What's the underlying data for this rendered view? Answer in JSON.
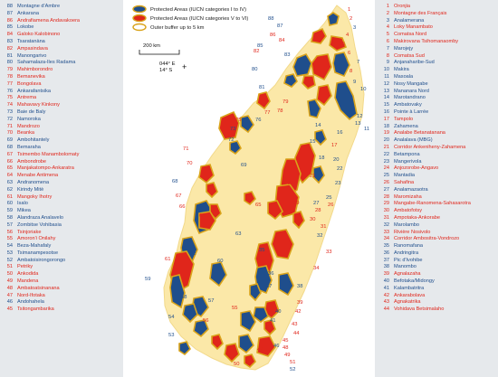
{
  "legend": {
    "items": [
      {
        "label": "Protected Areas (IUCN categories I to IV)",
        "color": "#1f4e8c"
      },
      {
        "label": "Protected Areas (IUCN categories V to VI)",
        "color": "#e0261b"
      },
      {
        "label": "Outer buffer up to 5 km",
        "color": "#d9a31a"
      }
    ]
  },
  "scale_label": "200 km",
  "coordinates": {
    "lon": "044° E",
    "lat": "14° S"
  },
  "colors": {
    "blue": "#1f4e8c",
    "red": "#e0261b",
    "buffer": "#d9a31a",
    "land": "#fbe8a8"
  },
  "left_list": [
    {
      "n": "88",
      "name": "Montagne d'Ambre",
      "cat": "blue"
    },
    {
      "n": "87",
      "name": "Ankarana",
      "cat": "blue"
    },
    {
      "n": "86",
      "name": "Andrafiamena Andavakoera",
      "cat": "red"
    },
    {
      "n": "85",
      "name": "Lokobe",
      "cat": "blue"
    },
    {
      "n": "84",
      "name": "Galoko Kalobinono",
      "cat": "red"
    },
    {
      "n": "83",
      "name": "Tsaratanàna",
      "cat": "blue"
    },
    {
      "n": "82",
      "name": "Ampasindava",
      "cat": "red"
    },
    {
      "n": "81",
      "name": "Manongarivo",
      "cat": "blue"
    },
    {
      "n": "80",
      "name": "Sahamalaza-Iles Radama",
      "cat": "blue"
    },
    {
      "n": "79",
      "name": "Mahimborondro",
      "cat": "red"
    },
    {
      "n": "78",
      "name": "Bemanevika",
      "cat": "red"
    },
    {
      "n": "77",
      "name": "Bongolava",
      "cat": "red"
    },
    {
      "n": "76",
      "name": "Ankarafantsika",
      "cat": "blue"
    },
    {
      "n": "75",
      "name": "Antrema",
      "cat": "red"
    },
    {
      "n": "74",
      "name": "Mahavavy Kinkony",
      "cat": "red"
    },
    {
      "n": "73",
      "name": "Baie de Baly",
      "cat": "blue"
    },
    {
      "n": "72",
      "name": "Namoroka",
      "cat": "blue"
    },
    {
      "n": "71",
      "name": "Mandrozo",
      "cat": "red"
    },
    {
      "n": "70",
      "name": "Beanka",
      "cat": "red"
    },
    {
      "n": "69",
      "name": "Ambohitantely",
      "cat": "blue"
    },
    {
      "n": "68",
      "name": "Bemaraha",
      "cat": "blue"
    },
    {
      "n": "67",
      "name": "Tsimembo Manambolomaty",
      "cat": "red"
    },
    {
      "n": "66",
      "name": "Ambondrobe",
      "cat": "red"
    },
    {
      "n": "65",
      "name": "Manjakatompo-Ankaratra",
      "cat": "red"
    },
    {
      "n": "64",
      "name": "Menabe Antimena",
      "cat": "red"
    },
    {
      "n": "63",
      "name": "Andranomena",
      "cat": "blue"
    },
    {
      "n": "62",
      "name": "Kirindy Mitè",
      "cat": "blue"
    },
    {
      "n": "61",
      "name": "Mangoky Ihotry",
      "cat": "red"
    },
    {
      "n": "60",
      "name": "Isalo",
      "cat": "blue"
    },
    {
      "n": "59",
      "name": "Mikea",
      "cat": "blue"
    },
    {
      "n": "58",
      "name": "Alandraza Analavelo",
      "cat": "blue"
    },
    {
      "n": "57",
      "name": "Zombitse Vohibasia",
      "cat": "blue"
    },
    {
      "n": "56",
      "name": "Tsinjoriake",
      "cat": "red"
    },
    {
      "n": "55",
      "name": "Amoron'i Onilahy",
      "cat": "red"
    },
    {
      "n": "54",
      "name": "Beza-Mahafaly",
      "cat": "blue"
    },
    {
      "n": "53",
      "name": "Tsimanampesotse",
      "cat": "blue"
    },
    {
      "n": "52",
      "name": "Ambatoisirongorongo",
      "cat": "blue"
    },
    {
      "n": "51",
      "name": "Petriky",
      "cat": "red"
    },
    {
      "n": "50",
      "name": "Ankodida",
      "cat": "red"
    },
    {
      "n": "49",
      "name": "Mandena",
      "cat": "red"
    },
    {
      "n": "48",
      "name": "Ambatoatsinanana",
      "cat": "red"
    },
    {
      "n": "47",
      "name": "Nord-Ifotaka",
      "cat": "red"
    },
    {
      "n": "46",
      "name": "Andohahela",
      "cat": "blue"
    },
    {
      "n": "45",
      "name": "Tsitongambarika",
      "cat": "red"
    }
  ],
  "right_list": [
    {
      "n": "1",
      "name": "Oronjia",
      "cat": "red"
    },
    {
      "n": "2",
      "name": "Montagne des Français",
      "cat": "red"
    },
    {
      "n": "3",
      "name": "Analamerana",
      "cat": "blue"
    },
    {
      "n": "4",
      "name": "Loky Manambato",
      "cat": "red"
    },
    {
      "n": "5",
      "name": "Comatsa Nord",
      "cat": "red"
    },
    {
      "n": "6",
      "name": "Makirovana Tsihomanaomby",
      "cat": "red"
    },
    {
      "n": "7",
      "name": "Marojejy",
      "cat": "blue"
    },
    {
      "n": "8",
      "name": "Comatsa Sud",
      "cat": "red"
    },
    {
      "n": "9",
      "name": "Anjanaharibe-Sud",
      "cat": "blue"
    },
    {
      "n": "10",
      "name": "Makira",
      "cat": "blue"
    },
    {
      "n": "11",
      "name": "Masoala",
      "cat": "blue"
    },
    {
      "n": "12",
      "name": "Nosy Mangabe",
      "cat": "blue"
    },
    {
      "n": "13",
      "name": "Mananara Nord",
      "cat": "blue"
    },
    {
      "n": "14",
      "name": "Marotandrano",
      "cat": "blue"
    },
    {
      "n": "15",
      "name": "Ambatovaky",
      "cat": "blue"
    },
    {
      "n": "16",
      "name": "Pointe à Larrée",
      "cat": "blue"
    },
    {
      "n": "17",
      "name": "Tampolo",
      "cat": "red"
    },
    {
      "n": "18",
      "name": "Zahamena",
      "cat": "blue"
    },
    {
      "n": "19",
      "name": "Analabe Betanatanana",
      "cat": "red"
    },
    {
      "n": "20",
      "name": "Analalava (MBG)",
      "cat": "blue"
    },
    {
      "n": "21",
      "name": "Corridor Ankeniheny-Zahamena",
      "cat": "red"
    },
    {
      "n": "22",
      "name": "Betampona",
      "cat": "blue"
    },
    {
      "n": "23",
      "name": "Mangerivola",
      "cat": "blue"
    },
    {
      "n": "24",
      "name": "Anjozorobe-Angavo",
      "cat": "red"
    },
    {
      "n": "25",
      "name": "Mantadia",
      "cat": "blue"
    },
    {
      "n": "26",
      "name": "Sahafina",
      "cat": "red"
    },
    {
      "n": "27",
      "name": "Analamazaotra",
      "cat": "blue"
    },
    {
      "n": "28",
      "name": "Maromizaha",
      "cat": "red"
    },
    {
      "n": "29",
      "name": "Mangabe-Ranomena-Sahasarotra",
      "cat": "red"
    },
    {
      "n": "30",
      "name": "Ambatofotsy",
      "cat": "red"
    },
    {
      "n": "31",
      "name": "Ampotaka-Ankorabe",
      "cat": "red"
    },
    {
      "n": "32",
      "name": "Marolambo",
      "cat": "blue"
    },
    {
      "n": "33",
      "name": "Rivière Nosivolo",
      "cat": "red"
    },
    {
      "n": "34",
      "name": "Corridor Ambositra-Vondrozo",
      "cat": "red"
    },
    {
      "n": "35",
      "name": "Ranomafana",
      "cat": "blue"
    },
    {
      "n": "36",
      "name": "Andringitra",
      "cat": "blue"
    },
    {
      "n": "37",
      "name": "Pic d'Ivohibe",
      "cat": "blue"
    },
    {
      "n": "38",
      "name": "Manombo",
      "cat": "blue"
    },
    {
      "n": "39",
      "name": "Agnalazaha",
      "cat": "red"
    },
    {
      "n": "40",
      "name": "Befotaka/Midongy",
      "cat": "blue"
    },
    {
      "n": "41",
      "name": "Kalambatritra",
      "cat": "blue"
    },
    {
      "n": "42",
      "name": "Ankarabolava",
      "cat": "red"
    },
    {
      "n": "43",
      "name": "Agnakatrika",
      "cat": "red"
    },
    {
      "n": "44",
      "name": "Vohidava Betsimalaho",
      "cat": "red"
    }
  ],
  "map_labels": [
    {
      "n": "1",
      "cat": "red"
    },
    {
      "n": "2",
      "cat": "red"
    },
    {
      "n": "3",
      "cat": "blue"
    },
    {
      "n": "4",
      "cat": "red"
    },
    {
      "n": "5",
      "cat": "red"
    },
    {
      "n": "6",
      "cat": "red"
    },
    {
      "n": "7",
      "cat": "blue"
    },
    {
      "n": "8",
      "cat": "red"
    },
    {
      "n": "9",
      "cat": "blue"
    },
    {
      "n": "10",
      "cat": "blue"
    },
    {
      "n": "11",
      "cat": "blue"
    },
    {
      "n": "12",
      "cat": "blue"
    },
    {
      "n": "13",
      "cat": "blue"
    },
    {
      "n": "14",
      "cat": "blue"
    },
    {
      "n": "15",
      "cat": "blue"
    },
    {
      "n": "16",
      "cat": "blue"
    },
    {
      "n": "17",
      "cat": "red"
    },
    {
      "n": "18",
      "cat": "blue"
    },
    {
      "n": "19",
      "cat": "red"
    },
    {
      "n": "20",
      "cat": "blue"
    },
    {
      "n": "21",
      "cat": "red"
    },
    {
      "n": "22",
      "cat": "blue"
    },
    {
      "n": "23",
      "cat": "blue"
    },
    {
      "n": "24",
      "cat": "red"
    },
    {
      "n": "25",
      "cat": "blue"
    },
    {
      "n": "26",
      "cat": "red"
    },
    {
      "n": "27",
      "cat": "blue"
    },
    {
      "n": "28",
      "cat": "red"
    },
    {
      "n": "29",
      "cat": "red"
    },
    {
      "n": "30",
      "cat": "red"
    },
    {
      "n": "31",
      "cat": "red"
    },
    {
      "n": "32",
      "cat": "blue"
    },
    {
      "n": "33",
      "cat": "red"
    },
    {
      "n": "34",
      "cat": "red"
    },
    {
      "n": "35",
      "cat": "blue"
    },
    {
      "n": "36",
      "cat": "blue"
    },
    {
      "n": "37",
      "cat": "blue"
    },
    {
      "n": "38",
      "cat": "blue"
    },
    {
      "n": "39",
      "cat": "red"
    },
    {
      "n": "40",
      "cat": "blue"
    },
    {
      "n": "41",
      "cat": "blue"
    },
    {
      "n": "42",
      "cat": "red"
    },
    {
      "n": "43",
      "cat": "red"
    },
    {
      "n": "44",
      "cat": "red"
    },
    {
      "n": "45",
      "cat": "red"
    },
    {
      "n": "46",
      "cat": "blue"
    },
    {
      "n": "47",
      "cat": "red"
    },
    {
      "n": "48",
      "cat": "red"
    },
    {
      "n": "49",
      "cat": "red"
    },
    {
      "n": "50",
      "cat": "red"
    },
    {
      "n": "51",
      "cat": "red"
    },
    {
      "n": "52",
      "cat": "blue"
    },
    {
      "n": "53",
      "cat": "blue"
    },
    {
      "n": "54",
      "cat": "blue"
    },
    {
      "n": "55",
      "cat": "red"
    },
    {
      "n": "56",
      "cat": "red"
    },
    {
      "n": "57",
      "cat": "blue"
    },
    {
      "n": "58",
      "cat": "blue"
    },
    {
      "n": "59",
      "cat": "blue"
    },
    {
      "n": "60",
      "cat": "blue"
    },
    {
      "n": "61",
      "cat": "red"
    },
    {
      "n": "62",
      "cat": "blue"
    },
    {
      "n": "63",
      "cat": "blue"
    },
    {
      "n": "64",
      "cat": "red"
    },
    {
      "n": "65",
      "cat": "red"
    },
    {
      "n": "66",
      "cat": "red"
    },
    {
      "n": "67",
      "cat": "red"
    },
    {
      "n": "68",
      "cat": "blue"
    },
    {
      "n": "69",
      "cat": "blue"
    },
    {
      "n": "70",
      "cat": "red"
    },
    {
      "n": "71",
      "cat": "red"
    },
    {
      "n": "72",
      "cat": "blue"
    },
    {
      "n": "73",
      "cat": "blue"
    },
    {
      "n": "74",
      "cat": "red"
    },
    {
      "n": "75",
      "cat": "red"
    },
    {
      "n": "76",
      "cat": "blue"
    },
    {
      "n": "77",
      "cat": "red"
    },
    {
      "n": "78",
      "cat": "red"
    },
    {
      "n": "79",
      "cat": "red"
    },
    {
      "n": "80",
      "cat": "blue"
    },
    {
      "n": "81",
      "cat": "blue"
    },
    {
      "n": "82",
      "cat": "red"
    },
    {
      "n": "83",
      "cat": "blue"
    },
    {
      "n": "84",
      "cat": "red"
    },
    {
      "n": "85",
      "cat": "blue"
    },
    {
      "n": "86",
      "cat": "red"
    },
    {
      "n": "87",
      "cat": "blue"
    },
    {
      "n": "88",
      "cat": "blue"
    }
  ]
}
